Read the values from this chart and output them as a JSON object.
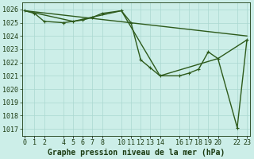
{
  "title": "Graphe pression niveau de la mer (hPa)",
  "background_color": "#cceee8",
  "plot_bg_color": "#cceee8",
  "line_color": "#2d5a1b",
  "marker_color": "#2d5a1b",
  "grid_color": "#aad8d0",
  "label_color": "#1a3a10",
  "ylim": [
    1016.5,
    1026.5
  ],
  "yticks": [
    1017,
    1018,
    1019,
    1020,
    1021,
    1022,
    1023,
    1024,
    1025,
    1026
  ],
  "xlim": [
    -0.3,
    23.3
  ],
  "line_width": 1.0,
  "marker_size": 2.8,
  "font_size_ticks": 6.0,
  "font_size_title": 7.0,
  "xtick_positions": [
    0,
    1,
    2,
    4,
    5,
    6,
    7,
    8,
    10,
    11,
    12,
    13,
    14,
    16,
    17,
    18,
    19,
    20,
    22,
    23
  ],
  "xtick_labels": [
    "0",
    "1",
    "2",
    "4",
    "5",
    "6",
    "7",
    "8",
    "10",
    "11",
    "12",
    "13",
    "14",
    "16",
    "17",
    "18",
    "19",
    "20",
    "22",
    "23"
  ],
  "line1_x": [
    0,
    23
  ],
  "line1_y": [
    1025.9,
    1024.0
  ],
  "line2_x": [
    0,
    5,
    10,
    14,
    20,
    23
  ],
  "line2_y": [
    1025.9,
    1025.1,
    1025.9,
    1021.0,
    1022.3,
    1023.7
  ],
  "line3_x": [
    0,
    1,
    2,
    4,
    5,
    6,
    7,
    8,
    10,
    11,
    12,
    13,
    14,
    16,
    17,
    18,
    19,
    20,
    22,
    23
  ],
  "line3_y": [
    1025.9,
    1025.7,
    1025.1,
    1025.0,
    1025.1,
    1025.2,
    1025.4,
    1025.7,
    1025.9,
    1025.0,
    1022.2,
    1021.6,
    1021.0,
    1021.0,
    1021.2,
    1021.5,
    1022.8,
    1022.3,
    1017.1,
    1023.7
  ]
}
